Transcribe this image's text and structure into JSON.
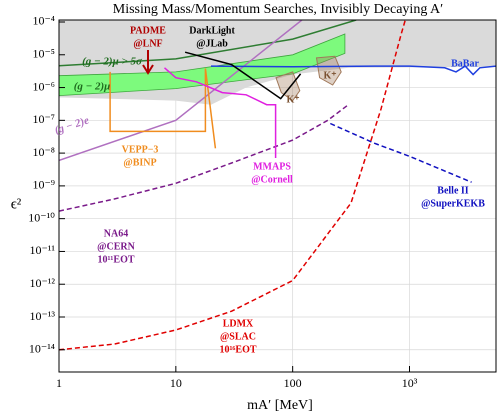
{
  "chart_data": {
    "type": "line",
    "title": "Missing Mass/Momentum Searches,   Invisibly Decaying A′",
    "xlabel": "mA′ [MeV]",
    "ylabel": "ϵ²",
    "xscale": "log",
    "yscale": "log",
    "grid": true,
    "xlim": [
      1,
      5500
    ],
    "ylim": [
      2.1e-15,
      0.000115
    ],
    "xticks": [
      1,
      10,
      100,
      {
        "value": 1000,
        "label": "10³"
      }
    ],
    "yticks": [
      {
        "value": 0.0001,
        "label": "10⁻⁴"
      },
      {
        "value": 1e-05,
        "label": "10⁻⁵"
      },
      {
        "value": 1e-06,
        "label": "10⁻⁶"
      },
      {
        "value": 1e-07,
        "label": "10⁻⁷"
      },
      {
        "value": 1e-08,
        "label": "10⁻⁸"
      },
      {
        "value": 1e-09,
        "label": "10⁻⁹"
      },
      {
        "value": 1e-10,
        "label": "10⁻¹⁰"
      },
      {
        "value": 1e-11,
        "label": "10⁻¹¹"
      },
      {
        "value": 1e-12,
        "label": "10⁻¹²"
      },
      {
        "value": 1e-13,
        "label": "10⁻¹³"
      },
      {
        "value": 1e-14,
        "label": "10⁻¹⁴"
      }
    ],
    "series": [
      {
        "fill": "above",
        "color": "#dadada",
        "x": [
          1,
          10,
          20,
          40,
          100,
          300,
          5500
        ],
        "values": [
          5e-07,
          4e-07,
          3e-07,
          1e-06,
          2.5e-06,
          4e-06,
          4.3e-06
        ]
      },
      {
        "fill": "band",
        "color": "#7dfa7d",
        "x": [
          1,
          10,
          100,
          280
        ],
        "upper": [
          2.3e-06,
          3e-06,
          1e-05,
          4.3e-05
        ],
        "lower": [
          5.7e-07,
          9.3e-07,
          2.6e-06,
          1.1e-05
        ]
      },
      {
        "fill": "closed",
        "color": "#a0785a",
        "x": [
          72,
          100,
          115,
          100,
          80
        ],
        "values": [
          2e-06,
          3e-06,
          8e-07,
          4e-07,
          7e-07
        ]
      },
      {
        "fill": "closed",
        "color": "#a0785a",
        "x": [
          160,
          230,
          260,
          220,
          170
        ],
        "values": [
          8e-06,
          9e-06,
          3e-06,
          1.2e-06,
          2e-06
        ]
      },
      {
        "color": "#2e7d32",
        "x": [
          1,
          10,
          100,
          350
        ],
        "values": [
          4.6e-06,
          7.5e-06,
          3e-05,
          0.000115
        ]
      },
      {
        "color": "#b070c0",
        "x": [
          1,
          10,
          120
        ],
        "values": [
          6e-09,
          1e-07,
          0.000115
        ]
      },
      {
        "color": "#1f3fdf",
        "x": [
          20,
          100,
          500,
          1000,
          2000,
          2500,
          3000,
          3500,
          4000,
          5500
        ],
        "values": [
          4.5e-06,
          4.3e-06,
          4.5e-06,
          4.5e-06,
          4e-06,
          3e-06,
          4.5e-06,
          2.5e-06,
          4e-06,
          4.5e-06
        ]
      },
      {
        "color": "#1010c0",
        "dash": true,
        "x": [
          210,
          500,
          1000,
          3400
        ],
        "values": [
          8e-08,
          2e-08,
          8e-09,
          1.3e-09
        ]
      },
      {
        "color": "#7a1a8a",
        "dash": true,
        "x": [
          1,
          3,
          10,
          30,
          100,
          200,
          300
        ],
        "values": [
          1.7e-10,
          4e-10,
          1.2e-09,
          5e-09,
          2.5e-08,
          1e-07,
          3e-07
        ]
      },
      {
        "color": "#e00000",
        "dash": true,
        "x": [
          1,
          3,
          10,
          30,
          100,
          316,
          570,
          850,
          920
        ],
        "values": [
          1e-14,
          1.5e-14,
          4e-14,
          1.5e-13,
          1.3e-12,
          3e-10,
          2.2e-07,
          4.4e-05,
          0.000115
        ]
      },
      {
        "color": "#f08c1e",
        "x": [
          2.74,
          2.74,
          17.9,
          17.9,
          21.8
        ],
        "values": [
          3e-06,
          4.6e-08,
          4.6e-08,
          3.8e-06,
          1.4e-08
        ]
      },
      {
        "color": "#e020e0",
        "x": [
          8,
          10,
          15,
          25,
          40,
          60,
          71.5,
          71.5
        ],
        "values": [
          4e-06,
          2e-06,
          1.5e-06,
          7e-07,
          6e-07,
          3e-07,
          3e-07,
          7.1e-09
        ]
      },
      {
        "color": "#000000",
        "x": [
          12,
          30,
          79,
          117
        ],
        "values": [
          1.2e-05,
          5e-06,
          4.6e-07,
          2.6e-06
        ]
      }
    ],
    "annotations": [
      {
        "lines": [
          "PADME",
          "@LNF"
        ],
        "color": "#b00000"
      },
      {
        "lines": [
          "DarkLight",
          "@JLab"
        ],
        "color": "#000000"
      },
      {
        "lines": [
          "BaBar"
        ],
        "color": "#1f3fdf"
      },
      {
        "lines": [
          "(g − 2)μ > 5σ"
        ],
        "color": "#1e6b1e"
      },
      {
        "lines": [
          "(g − 2)μ"
        ],
        "color": "#1e6b1e"
      },
      {
        "lines": [
          "(g − 2)e"
        ],
        "color": "#b070c0"
      },
      {
        "lines": [
          "VEPP−3",
          "@BINP"
        ],
        "color": "#f08c1e"
      },
      {
        "lines": [
          "MMAPS",
          "@Cornell"
        ],
        "color": "#e020e0"
      },
      {
        "lines": [
          "Belle II",
          "@SuperKEKB"
        ],
        "color": "#1010c0"
      },
      {
        "lines": [
          "NA64",
          "@CERN",
          "10¹¹EOT"
        ],
        "color": "#7a1a8a"
      },
      {
        "lines": [
          "LDMX",
          "@SLAC",
          "10¹⁶EOT"
        ],
        "color": "#e00000"
      },
      {
        "lines": [
          "K⁺"
        ],
        "color": "#7a5030"
      },
      {
        "lines": [
          "K⁺"
        ],
        "color": "#7a5030"
      }
    ]
  }
}
